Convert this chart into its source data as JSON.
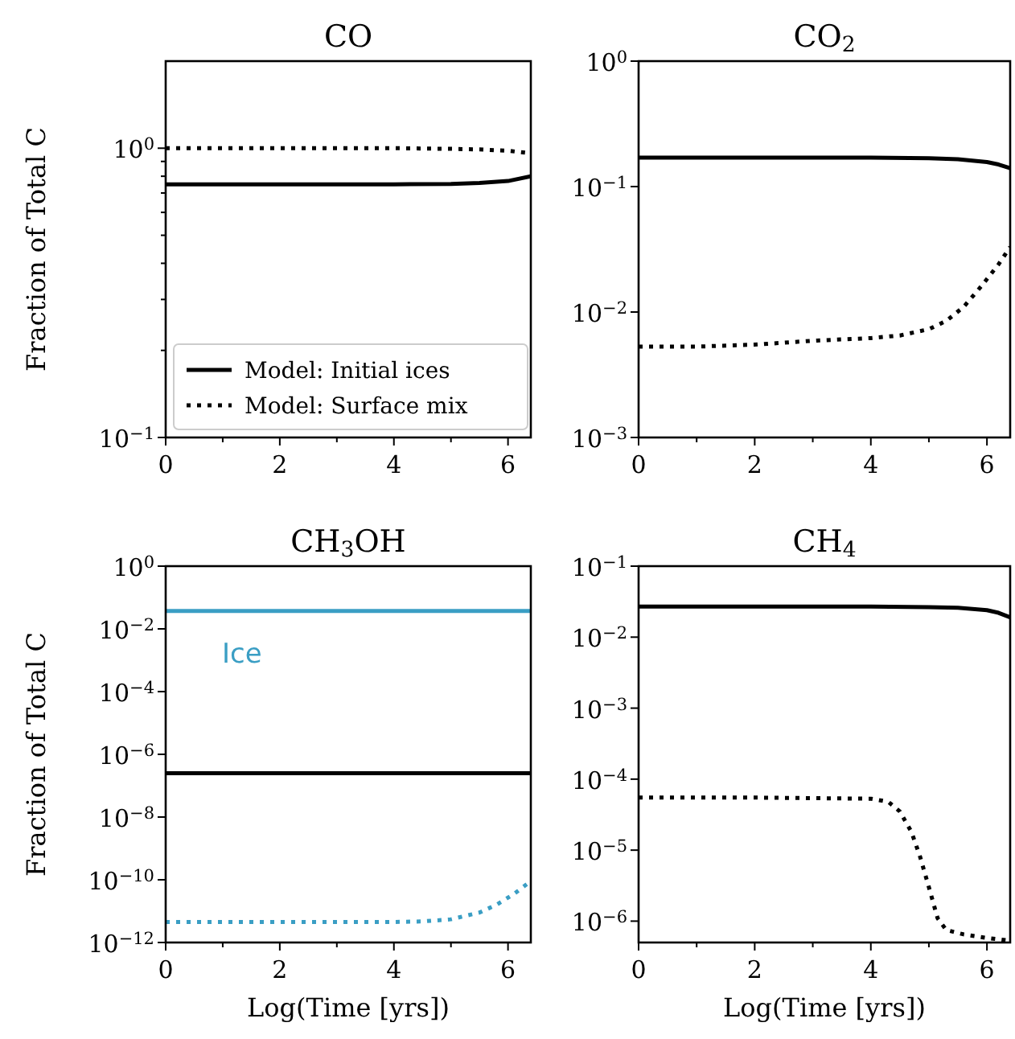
{
  "chart_data": [
    {
      "type": "line",
      "title": "CO",
      "ylabel": "Fraction of Total C",
      "log": "y",
      "xlim": [
        0,
        6.4
      ],
      "ylim": [
        0.1,
        2
      ],
      "xticks": [
        0,
        {
          "value": 1,
          "label": null
        },
        2,
        {
          "value": 3,
          "label": null
        },
        4,
        {
          "value": 5,
          "label": null
        },
        6
      ],
      "yticks": [
        {
          "value": 0.1,
          "label": "10$^{−1}$"
        },
        {
          "value": 0.2,
          "label": null
        },
        {
          "value": 0.3,
          "label": null
        },
        {
          "value": 0.4,
          "label": null
        },
        {
          "value": 0.5,
          "label": null
        },
        {
          "value": 0.6,
          "label": null
        },
        {
          "value": 0.7,
          "label": null
        },
        {
          "value": 0.8,
          "label": null
        },
        {
          "value": 0.9,
          "label": null
        },
        {
          "value": 1,
          "label": "10$^{0}$"
        }
      ],
      "legend": "bottom left",
      "series": [
        {
          "name": "Model: Initial ices",
          "color": "#000000",
          "line_style": "solid",
          "x": [
            0,
            2,
            4,
            5,
            5.5,
            6,
            6.4
          ],
          "values": [
            0.75,
            0.75,
            0.75,
            0.752,
            0.758,
            0.77,
            0.8
          ]
        },
        {
          "name": "Model: Surface mix",
          "color": "#000000",
          "line_style": "dotted",
          "x": [
            0,
            2,
            4,
            5,
            5.5,
            6,
            6.4
          ],
          "values": [
            1,
            1,
            1,
            0.995,
            0.99,
            0.98,
            0.96
          ]
        }
      ]
    },
    {
      "type": "line",
      "title": "CO$_{2}$",
      "log": "y",
      "xlim": [
        0,
        6.4
      ],
      "ylim": [
        0.001,
        1
      ],
      "xticks": [
        0,
        {
          "value": 1,
          "label": null
        },
        2,
        {
          "value": 3,
          "label": null
        },
        4,
        {
          "value": 5,
          "label": null
        },
        6
      ],
      "yticks": [
        {
          "value": 0.001,
          "label": "10$^{−3}$"
        },
        {
          "value": 0.01,
          "label": "10$^{−2}$"
        },
        {
          "value": 0.1,
          "label": "10$^{−1}$"
        },
        {
          "value": 1,
          "label": "10$^{0}$"
        }
      ],
      "series": [
        {
          "color": "#000000",
          "line_style": "solid",
          "x": [
            0,
            2,
            4,
            5,
            5.5,
            6,
            6.2,
            6.4
          ],
          "values": [
            0.17,
            0.17,
            0.17,
            0.168,
            0.165,
            0.157,
            0.15,
            0.14
          ]
        },
        {
          "color": "#000000",
          "line_style": "dotted",
          "x": [
            0,
            1,
            2,
            3,
            4,
            4.5,
            5,
            5.3,
            5.6,
            5.9,
            6.2,
            6.4
          ],
          "values": [
            0.0053,
            0.0053,
            0.0055,
            0.0059,
            0.0062,
            0.0065,
            0.0073,
            0.0085,
            0.011,
            0.016,
            0.024,
            0.033
          ]
        }
      ]
    },
    {
      "type": "line",
      "title": "CH$_{3}$OH",
      "xlabel": "Log(Time [yrs])",
      "ylabel": "Fraction of Total C",
      "log": "y",
      "xlim": [
        0,
        6.4
      ],
      "ylim": [
        1e-12,
        1
      ],
      "xticks": [
        0,
        {
          "value": 1,
          "label": null
        },
        2,
        {
          "value": 3,
          "label": null
        },
        4,
        {
          "value": 5,
          "label": null
        },
        6
      ],
      "yticks": [
        {
          "value": 1e-12,
          "label": "10$^{−12}$"
        },
        {
          "value": 1e-10,
          "label": "10$^{−10}$"
        },
        {
          "value": 1e-08,
          "label": "10$^{−8}$"
        },
        {
          "value": 1e-06,
          "label": "10$^{−6}$"
        },
        {
          "value": 0.0001,
          "label": "10$^{−4}$"
        },
        {
          "value": 0.01,
          "label": "10$^{−2}$"
        },
        {
          "value": 1,
          "label": "10$^{0}$"
        }
      ],
      "annotations": [
        "Ice"
      ],
      "series": [
        {
          "color": "#3a9ec4",
          "line_style": "solid",
          "x": [
            0,
            6.4
          ],
          "values": [
            0.037,
            0.037
          ]
        },
        {
          "color": "#000000",
          "line_style": "solid",
          "x": [
            0,
            6.4
          ],
          "values": [
            2.5e-07,
            2.5e-07
          ]
        },
        {
          "color": "#3a9ec4",
          "line_style": "dotted",
          "x": [
            0,
            2,
            4,
            4.5,
            5,
            5.5,
            5.8,
            6.1,
            6.4
          ],
          "values": [
            4.5e-12,
            4.5e-12,
            4.5e-12,
            4.7e-12,
            5.5e-12,
            9e-12,
            1.6e-11,
            3.5e-11,
            9e-11
          ]
        }
      ]
    },
    {
      "type": "line",
      "title": "CH$_{4}$",
      "xlabel": "Log(Time [yrs])",
      "log": "y",
      "xlim": [
        0,
        6.4
      ],
      "ylim": [
        5e-07,
        0.1
      ],
      "xticks": [
        0,
        {
          "value": 1,
          "label": null
        },
        2,
        {
          "value": 3,
          "label": null
        },
        4,
        {
          "value": 5,
          "label": null
        },
        6
      ],
      "yticks": [
        {
          "value": 1e-06,
          "label": "10$^{−6}$"
        },
        {
          "value": 1e-05,
          "label": "10$^{−5}$"
        },
        {
          "value": 0.0001,
          "label": "10$^{−4}$"
        },
        {
          "value": 0.001,
          "label": "10$^{−3}$"
        },
        {
          "value": 0.01,
          "label": "10$^{−2}$"
        },
        {
          "value": 0.1,
          "label": "10$^{−1}$"
        }
      ],
      "series": [
        {
          "color": "#000000",
          "line_style": "solid",
          "x": [
            0,
            2,
            4,
            5,
            5.5,
            6,
            6.2,
            6.4
          ],
          "values": [
            0.027,
            0.027,
            0.027,
            0.0265,
            0.026,
            0.024,
            0.022,
            0.019
          ]
        },
        {
          "color": "#000000",
          "line_style": "dotted",
          "x": [
            0,
            2,
            4,
            4.3,
            4.5,
            4.7,
            4.85,
            5,
            5.15,
            5.3,
            5.6,
            6,
            6.4
          ],
          "values": [
            5.5e-05,
            5.5e-05,
            5.3e-05,
            4.8e-05,
            3.5e-05,
            1.8e-05,
            8e-06,
            3e-06,
            1.1e-06,
            7.5e-07,
            6.5e-07,
            5.8e-07,
            5.3e-07
          ]
        }
      ]
    }
  ]
}
